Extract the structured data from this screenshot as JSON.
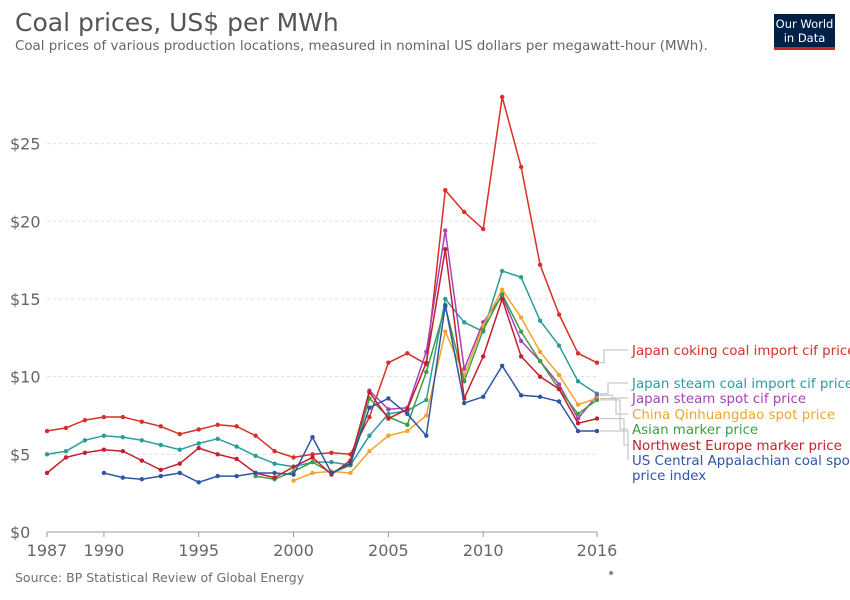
{
  "title": "Coal prices, US$ per MWh",
  "subtitle": "Coal prices of various production locations, measured in nominal US dollars per megawatt-hour (MWh).",
  "logo": {
    "line1": "Our World",
    "line2": "in Data"
  },
  "source": "Source: BP Statistical Review of Global Energy",
  "footer_mark": "•",
  "chart_data": {
    "type": "line",
    "title": "Coal prices, US$ per MWh",
    "xlabel": "",
    "ylabel": "",
    "xlim": [
      1987,
      2016
    ],
    "ylim": [
      0,
      28
    ],
    "x_ticks": [
      1987,
      1990,
      1995,
      2000,
      2005,
      2010,
      2016
    ],
    "y_ticks": [
      0,
      5,
      10,
      15,
      20,
      25
    ],
    "y_tick_labels": [
      "$0",
      "$5",
      "$10",
      "$15",
      "$20",
      "$25"
    ],
    "grid": "horizontal dashed",
    "legend": "right, labels at series ends",
    "series": [
      {
        "name": "Japan coking coal import cif price",
        "legend_lines": [
          "Japan coking coal import cif price"
        ],
        "color": "#d73027",
        "x": [
          1987,
          1988,
          1989,
          1990,
          1991,
          1992,
          1993,
          1994,
          1995,
          1996,
          1997,
          1998,
          1999,
          2000,
          2001,
          2002,
          2003,
          2004,
          2005,
          2006,
          2007,
          2008,
          2009,
          2010,
          2011,
          2012,
          2013,
          2014,
          2015,
          2016
        ],
        "y": [
          6.5,
          6.7,
          7.2,
          7.4,
          7.4,
          7.1,
          6.8,
          6.3,
          6.6,
          6.9,
          6.8,
          6.2,
          5.2,
          4.8,
          5.0,
          5.1,
          5.0,
          7.4,
          10.9,
          11.5,
          10.8,
          22.0,
          20.6,
          19.5,
          28.0,
          23.5,
          17.2,
          14.0,
          11.5,
          10.9
        ]
      },
      {
        "name": "Japan steam coal import cif price",
        "legend_lines": [
          "Japan steam coal import cif price"
        ],
        "color": "#2a9d9a",
        "x": [
          1987,
          1988,
          1989,
          1990,
          1991,
          1992,
          1993,
          1994,
          1995,
          1996,
          1997,
          1998,
          1999,
          2000,
          2001,
          2002,
          2003,
          2004,
          2005,
          2006,
          2007,
          2008,
          2009,
          2010,
          2011,
          2012,
          2013,
          2014,
          2015,
          2016
        ],
        "y": [
          5.0,
          5.2,
          5.9,
          6.2,
          6.1,
          5.9,
          5.6,
          5.3,
          5.7,
          6.0,
          5.5,
          4.9,
          4.4,
          4.2,
          4.5,
          4.5,
          4.3,
          6.2,
          7.6,
          7.8,
          8.5,
          15.0,
          13.5,
          12.9,
          16.8,
          16.4,
          13.6,
          12.0,
          9.7,
          8.9
        ]
      },
      {
        "name": "Japan steam spot cif price",
        "legend_lines": [
          "Japan steam spot cif price"
        ],
        "color": "#a742b8",
        "x": [
          2003,
          2004,
          2005,
          2006,
          2007,
          2008,
          2009,
          2010,
          2011,
          2012,
          2013,
          2014,
          2015,
          2016
        ],
        "y": [
          4.4,
          9.1,
          7.9,
          8.0,
          11.6,
          19.4,
          10.5,
          13.5,
          15.2,
          12.3,
          11.0,
          9.5,
          7.3,
          8.8
        ]
      },
      {
        "name": "China Qinhuangdao spot price",
        "legend_lines": [
          "China Qinhuangdao spot price"
        ],
        "color": "#f2a42e",
        "x": [
          2000,
          2001,
          2002,
          2003,
          2004,
          2005,
          2006,
          2007,
          2008,
          2009,
          2010,
          2011,
          2012,
          2013,
          2014,
          2015,
          2016
        ],
        "y": [
          3.3,
          3.8,
          3.9,
          3.8,
          5.2,
          6.2,
          6.5,
          7.5,
          12.9,
          10.1,
          13.3,
          15.6,
          13.8,
          11.6,
          10.1,
          8.2,
          8.6
        ]
      },
      {
        "name": "Asian marker price",
        "legend_lines": [
          "Asian marker price"
        ],
        "color": "#3c9f45",
        "x": [
          1998,
          1999,
          2000,
          2001,
          2002,
          2003,
          2004,
          2005,
          2006,
          2007,
          2008,
          2009,
          2010,
          2011,
          2012,
          2013,
          2014,
          2015,
          2016
        ],
        "y": [
          3.6,
          3.4,
          3.9,
          4.5,
          3.8,
          4.3,
          8.6,
          7.4,
          6.9,
          10.3,
          14.5,
          9.7,
          13.0,
          15.3,
          12.9,
          11.0,
          9.2,
          7.6,
          8.5
        ]
      },
      {
        "name": "Northwest Europe marker price",
        "legend_lines": [
          "Northwest Europe marker price"
        ],
        "color": "#c31f2c",
        "x": [
          1987,
          1988,
          1989,
          1990,
          1991,
          1992,
          1993,
          1994,
          1995,
          1996,
          1997,
          1998,
          1999,
          2000,
          2001,
          2002,
          2003,
          2004,
          2005,
          2006,
          2007,
          2008,
          2009,
          2010,
          2011,
          2012,
          2013,
          2014,
          2015,
          2016
        ],
        "y": [
          3.8,
          4.8,
          5.1,
          5.3,
          5.2,
          4.6,
          4.0,
          4.4,
          5.4,
          5.0,
          4.7,
          3.8,
          3.5,
          4.2,
          4.8,
          3.7,
          4.6,
          9.0,
          7.3,
          7.9,
          10.9,
          18.2,
          8.6,
          11.3,
          15.0,
          11.3,
          10.0,
          9.2,
          7.0,
          7.3
        ]
      },
      {
        "name": "US Central Appalachian coal spot price index",
        "legend_lines": [
          "US Central Appalachian coal spot",
          "price index"
        ],
        "color": "#2d55a5",
        "x": [
          1990,
          1991,
          1992,
          1993,
          1994,
          1995,
          1996,
          1997,
          1998,
          1999,
          2000,
          2001,
          2002,
          2003,
          2004,
          2005,
          2006,
          2007,
          2008,
          2009,
          2010,
          2011,
          2012,
          2013,
          2014,
          2015,
          2016
        ],
        "y": [
          3.8,
          3.5,
          3.4,
          3.6,
          3.8,
          3.2,
          3.6,
          3.6,
          3.8,
          3.8,
          3.7,
          6.1,
          3.8,
          4.4,
          8.0,
          8.6,
          7.6,
          6.2,
          14.6,
          8.3,
          8.7,
          10.7,
          8.8,
          8.7,
          8.4,
          6.5,
          6.5
        ]
      }
    ]
  }
}
